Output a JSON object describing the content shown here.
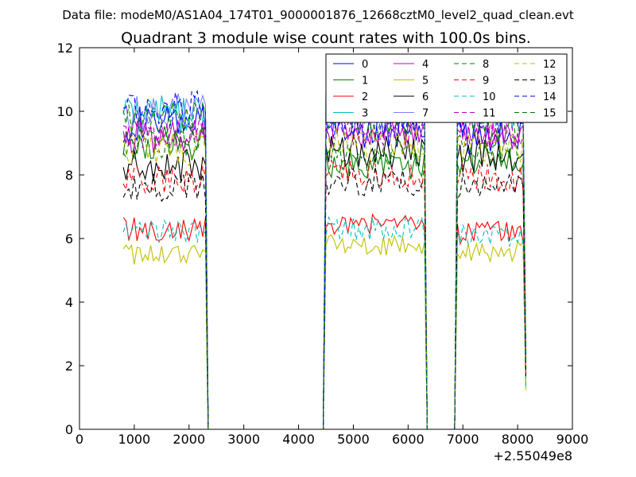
{
  "chart_data": {
    "type": "line",
    "suptitle": "Data file: modeM0/AS1A04_174T01_9000001876_12668cztM0_level2_quad_clean.evt",
    "title": "Quadrant 3 module wise count rates with 100.0s bins.",
    "xlim": [
      0,
      9000
    ],
    "ylim": [
      0,
      12
    ],
    "xticks": [
      "0",
      "1000",
      "2000",
      "3000",
      "4000",
      "5000",
      "6000",
      "7000",
      "8000",
      "9000"
    ],
    "yticks": [
      "0",
      "2",
      "4",
      "6",
      "8",
      "10",
      "12"
    ],
    "x_offset_label": "+2.55049e8",
    "legend_position": "upper right",
    "legend_columns": 4,
    "segments": [
      {
        "start": 800,
        "end": 2300,
        "step": 50
      },
      {
        "start": 4500,
        "end": 6300,
        "step": 50
      },
      {
        "start": 6900,
        "end": 8150,
        "step": 50
      }
    ],
    "gaps": [
      {
        "from": 2350,
        "to": 4450
      },
      {
        "from": 6350,
        "to": 6850
      }
    ],
    "series": [
      {
        "name": "0",
        "color": "#0000ff",
        "dashed": false,
        "levels": [
          9.6,
          9.4,
          9.2
        ]
      },
      {
        "name": "1",
        "color": "#008000",
        "dashed": false,
        "levels": [
          9.0,
          8.3,
          8.5
        ]
      },
      {
        "name": "2",
        "color": "#ff0000",
        "dashed": false,
        "levels": [
          6.3,
          6.4,
          6.2
        ]
      },
      {
        "name": "3",
        "color": "#00bfbf",
        "dashed": false,
        "levels": [
          9.9,
          10.1,
          10.0
        ]
      },
      {
        "name": "4",
        "color": "#bf00bf",
        "dashed": false,
        "levels": [
          9.2,
          9.3,
          9.2
        ]
      },
      {
        "name": "5",
        "color": "#bfbf00",
        "dashed": false,
        "levels": [
          5.5,
          5.8,
          5.6
        ]
      },
      {
        "name": "6",
        "color": "#000000",
        "dashed": false,
        "levels": [
          8.3,
          8.7,
          8.6
        ]
      },
      {
        "name": "7",
        "color": "#8080ff",
        "dashed": false,
        "levels": [
          10.0,
          10.2,
          10.0
        ]
      },
      {
        "name": "8",
        "color": "#008000",
        "dashed": true,
        "levels": [
          9.0,
          8.6,
          8.8
        ]
      },
      {
        "name": "9",
        "color": "#ff0000",
        "dashed": true,
        "levels": [
          7.9,
          8.0,
          7.9
        ]
      },
      {
        "name": "10",
        "color": "#00bfbf",
        "dashed": true,
        "levels": [
          6.2,
          6.3,
          6.1
        ]
      },
      {
        "name": "11",
        "color": "#bf00bf",
        "dashed": true,
        "levels": [
          9.4,
          9.5,
          9.4
        ]
      },
      {
        "name": "12",
        "color": "#bfbf00",
        "dashed": true,
        "levels": [
          8.8,
          9.0,
          8.9
        ]
      },
      {
        "name": "13",
        "color": "#000000",
        "dashed": true,
        "levels": [
          7.6,
          7.8,
          7.6
        ]
      },
      {
        "name": "14",
        "color": "#0000ff",
        "dashed": true,
        "levels": [
          10.1,
          9.6,
          9.8
        ]
      },
      {
        "name": "15",
        "color": "#008000",
        "dashed": true,
        "levels": [
          9.8,
          9.7,
          9.6
        ]
      }
    ]
  }
}
